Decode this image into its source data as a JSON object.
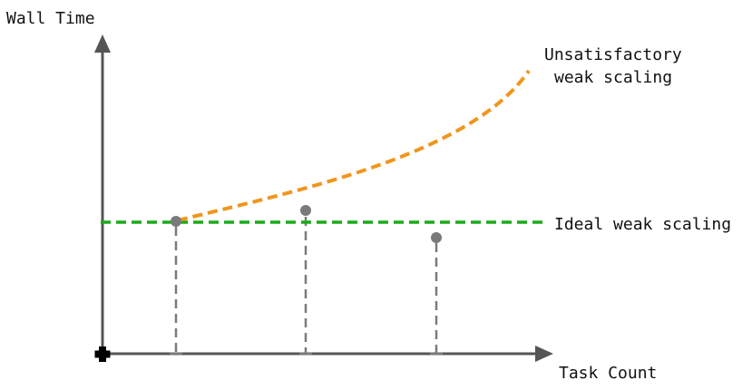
{
  "labels": {
    "y_axis": "Wall Time",
    "x_axis": "Task Count",
    "unsatisfactory_line1": "Unsatisfactory",
    "unsatisfactory_line2": "weak scaling",
    "ideal": "Ideal weak scaling"
  },
  "colors": {
    "axis": "#555555",
    "ideal_line": "#1aab1a",
    "unsatisfactory_curve": "#f0961e",
    "points": "#7a7a7a",
    "drop_lines": "#7a7a7a",
    "origin_marker": "#000000"
  },
  "icons": {
    "origin": "plus-icon"
  }
}
